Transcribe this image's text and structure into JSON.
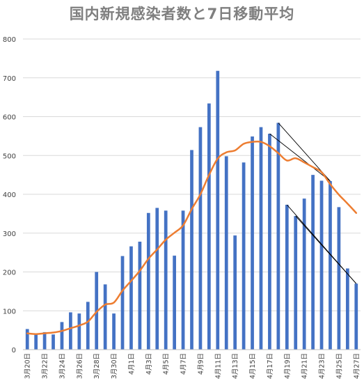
{
  "chart_data": {
    "type": "bar",
    "title": "国内新規感染者数と7日移動平均",
    "xlabel": "",
    "ylabel": "",
    "ylim": [
      0,
      800
    ],
    "y_ticks": [
      0,
      100,
      200,
      300,
      400,
      500,
      600,
      700,
      800
    ],
    "grid": true,
    "legend": "none",
    "categories": [
      "3月20日",
      "3月21日",
      "3月22日",
      "3月23日",
      "3月24日",
      "3月25日",
      "3月26日",
      "3月27日",
      "3月28日",
      "3月29日",
      "3月30日",
      "3月31日",
      "4月1日",
      "4月2日",
      "4月3日",
      "4月4日",
      "4月5日",
      "4月6日",
      "4月7日",
      "4月8日",
      "4月9日",
      "4月10日",
      "4月11日",
      "4月12日",
      "4月13日",
      "4月14日",
      "4月15日",
      "4月16日",
      "4月17日",
      "4月18日",
      "4月19日",
      "4月20日",
      "4月21日",
      "4月22日",
      "4月23日",
      "4月24日",
      "4月25日",
      "4月26日",
      "4月27日"
    ],
    "x_tick_labels": [
      "3月20日",
      "3月22日",
      "3月24日",
      "3月26日",
      "3月28日",
      "3月30日",
      "4月1日",
      "4月3日",
      "4月5日",
      "4月7日",
      "4月9日",
      "4月11日",
      "4月13日",
      "4月15日",
      "4月17日",
      "4月19日",
      "4月21日",
      "4月23日",
      "4月25日",
      "4月27日"
    ],
    "series": [
      {
        "kind": "bar",
        "color": "#4472c4",
        "values": [
          53,
          39,
          45,
          39,
          71,
          96,
          93,
          123,
          200,
          168,
          93,
          241,
          266,
          278,
          352,
          365,
          358,
          242,
          358,
          514,
          573,
          634,
          718,
          498,
          294,
          482,
          549,
          573,
          556,
          584,
          373,
          344,
          389,
          450,
          435,
          434,
          367,
          209,
          170
        ]
      },
      {
        "kind": "line",
        "color": "#ed7d31",
        "values": [
          42,
          40,
          42,
          44,
          48,
          55,
          62,
          72,
          97,
          116,
          121,
          152,
          177,
          203,
          234,
          258,
          283,
          301,
          320,
          362,
          400,
          450,
          492,
          508,
          513,
          530,
          535,
          535,
          524,
          506,
          487,
          493,
          482,
          470,
          457,
          426,
          399,
          376,
          352
        ]
      }
    ],
    "annotations": [
      {
        "kind": "trend-line",
        "color": "#000000",
        "from": [
          "4月17日",
          556
        ],
        "to": [
          "4月24日",
          434
        ]
      },
      {
        "kind": "trend-line",
        "color": "#000000",
        "from": [
          "4月18日",
          584
        ],
        "to": [
          "4月24日",
          434
        ]
      },
      {
        "kind": "trend-line",
        "color": "#000000",
        "from": [
          "4月19日",
          373
        ],
        "to": [
          "4月27日",
          170
        ]
      },
      {
        "kind": "trend-line",
        "color": "#000000",
        "from": [
          "4月20日",
          344
        ],
        "to": [
          "4月27日",
          170
        ]
      }
    ]
  }
}
